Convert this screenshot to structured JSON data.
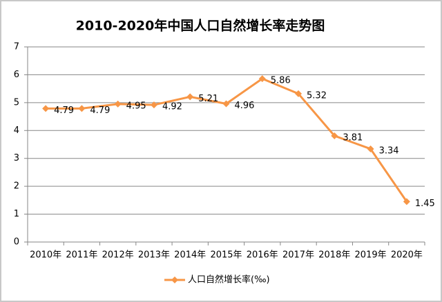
{
  "chart_data": {
    "type": "line",
    "title": "2010-2020年中国人口自然增长率走势图",
    "categories": [
      "2010年",
      "2011年",
      "2012年",
      "2013年",
      "2014年",
      "2015年",
      "2016年",
      "2017年",
      "2018年",
      "2019年",
      "2020年"
    ],
    "series": [
      {
        "name": "人口自然增长率(‰)",
        "color": "#f79646",
        "values": [
          4.79,
          4.79,
          4.95,
          4.92,
          5.21,
          4.96,
          5.86,
          5.32,
          3.81,
          3.34,
          1.45
        ]
      }
    ],
    "ylim": [
      0,
      7
    ],
    "yticks": [
      0,
      1,
      2,
      3,
      4,
      5,
      6,
      7
    ],
    "grid": true,
    "legend": "bottom",
    "data_labels": true
  }
}
